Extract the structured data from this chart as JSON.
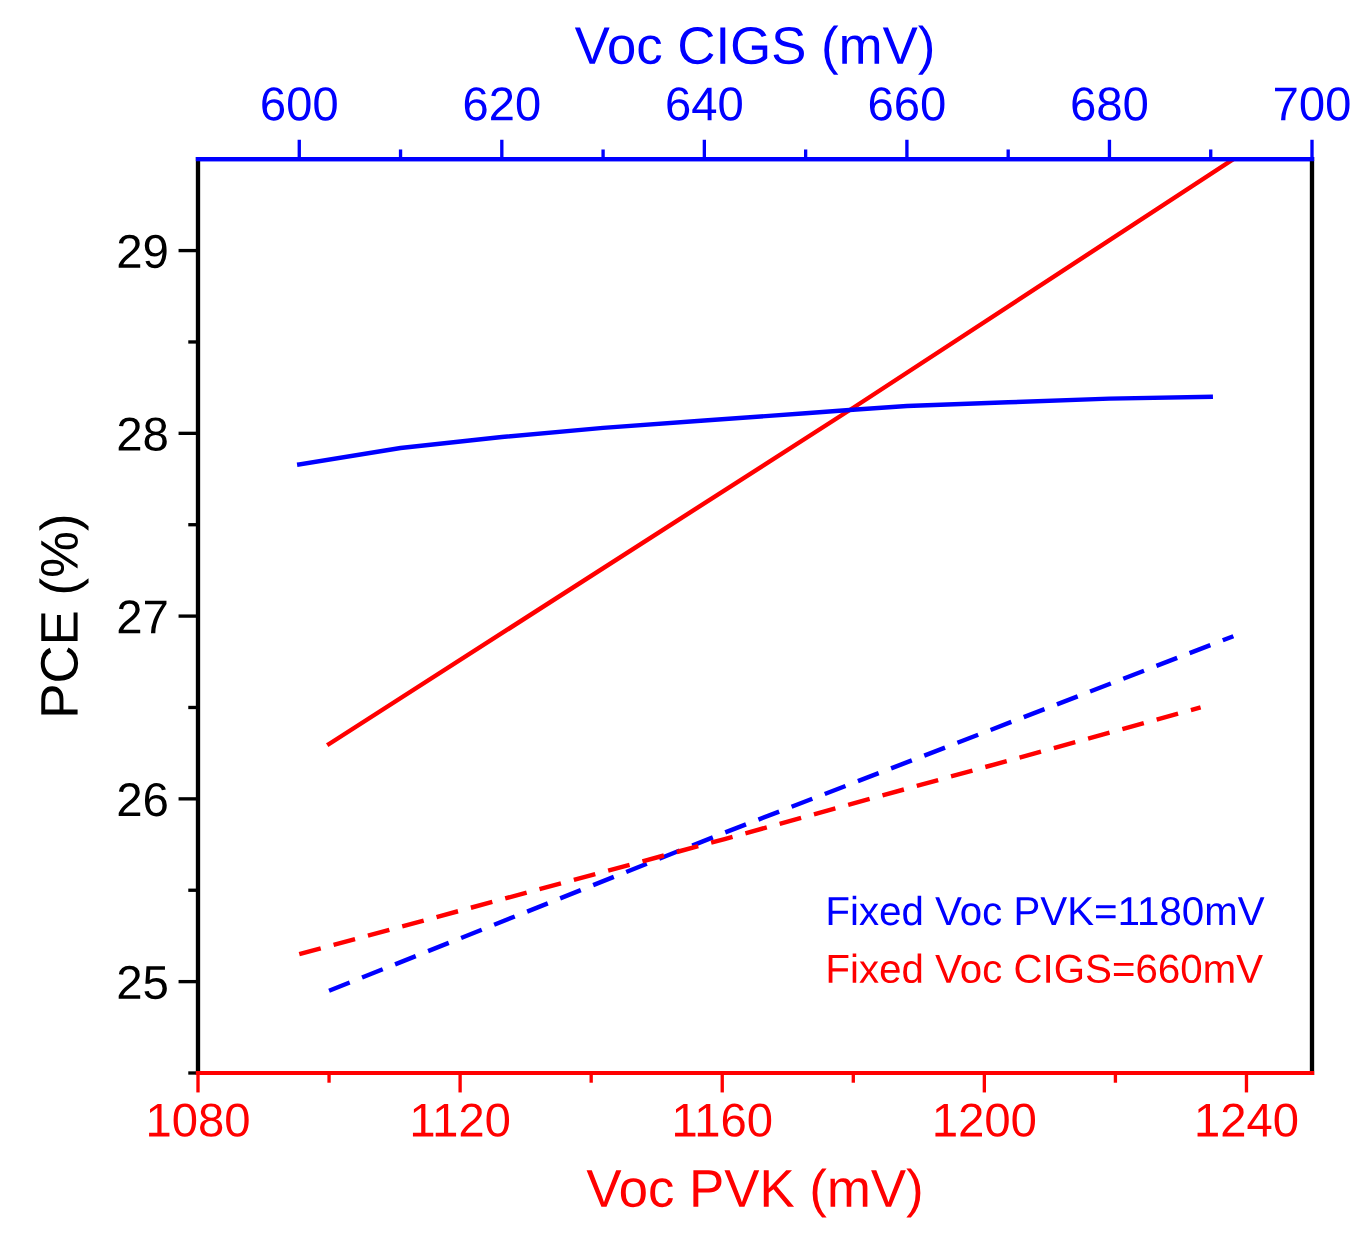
{
  "chart_data": {
    "type": "line",
    "xlabel": "Voc PVK (mV)",
    "x2label": "Voc CIGS (mV)",
    "ylabel": "PCE (%)",
    "xlim": [
      1080,
      1250
    ],
    "xticks": [
      1080,
      {
        "value": 1100,
        "label": null
      },
      1120,
      {
        "value": 1140,
        "label": null
      },
      1160,
      {
        "value": 1180,
        "label": null
      },
      1200,
      {
        "value": 1220,
        "label": null
      },
      1240
    ],
    "x2lim": [
      590,
      700
    ],
    "x2ticks": [
      600,
      {
        "value": 610,
        "label": null
      },
      620,
      {
        "value": 630,
        "label": null
      },
      640,
      {
        "value": 650,
        "label": null
      },
      660,
      {
        "value": 670,
        "label": null
      },
      680,
      {
        "value": 690,
        "label": null
      },
      700
    ],
    "ylim": [
      24.5,
      29.5
    ],
    "yticks": [
      {
        "value": 24.5,
        "label": null
      },
      25,
      {
        "value": 25.5,
        "label": null
      },
      26,
      {
        "value": 26.5,
        "label": null
      },
      27,
      {
        "value": 27.5,
        "label": null
      },
      28,
      {
        "value": 28.5,
        "label": null
      },
      29
    ],
    "grid": false,
    "legend": "bottom right",
    "marker": "none",
    "series": [
      {
        "name": "Fixed Voc PVK=1180mV",
        "color": "#0000ff",
        "axis": "x2",
        "line_style": "solid",
        "x": [
          600,
          610,
          620,
          630,
          640,
          650,
          655,
          660,
          670,
          680,
          690
        ],
        "values": [
          27.83,
          27.92,
          27.98,
          28.03,
          28.07,
          28.11,
          28.13,
          28.15,
          28.17,
          28.19,
          28.2
        ]
      },
      {
        "name": "Fixed Voc CIGS=660mV",
        "color": "#ff0000",
        "line_style": "solid",
        "x": [
          1100,
          1180,
          1238
        ],
        "values": [
          26.3,
          28.14,
          29.5
        ]
      },
      {
        "color": "#0000ff",
        "line_style": "dashed",
        "x": [
          1100,
          1160,
          1238
        ],
        "values": [
          24.95,
          25.81,
          26.89
        ]
      },
      {
        "color": "#ff0000",
        "axis": "x2",
        "line_style": "dashed",
        "x": [
          600,
          642,
          689
        ],
        "values": [
          25.15,
          25.78,
          26.5
        ]
      }
    ]
  }
}
